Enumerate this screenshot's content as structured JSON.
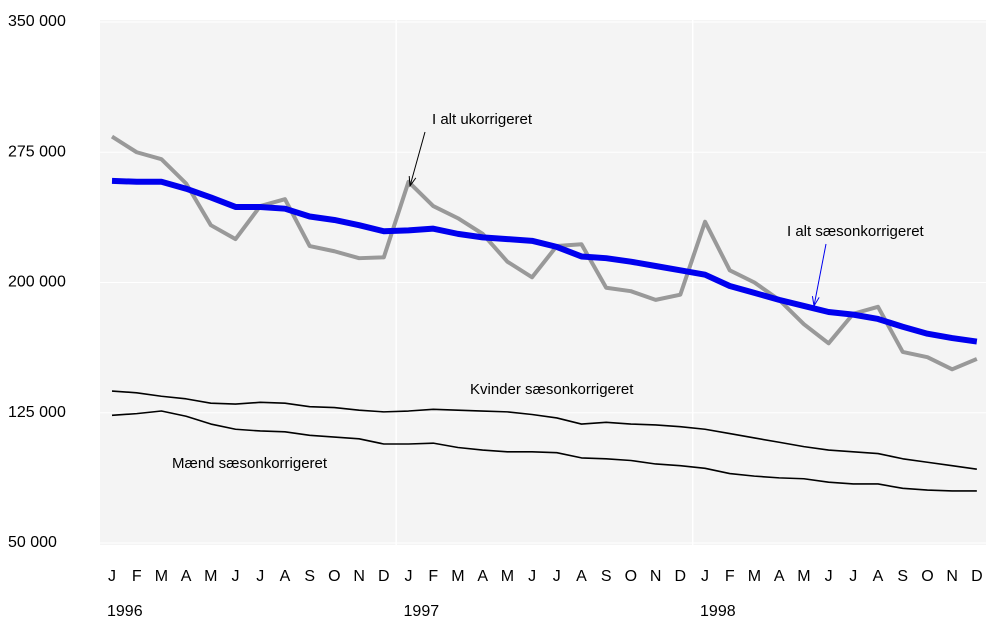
{
  "chart_data": {
    "type": "line",
    "categories": [
      "J",
      "F",
      "M",
      "A",
      "M",
      "J",
      "J",
      "A",
      "S",
      "O",
      "N",
      "D",
      "J",
      "F",
      "M",
      "A",
      "M",
      "J",
      "J",
      "A",
      "S",
      "O",
      "N",
      "D",
      "J",
      "F",
      "M",
      "A",
      "M",
      "J",
      "J",
      "A",
      "S",
      "O",
      "N",
      "D"
    ],
    "years": [
      "1996",
      "1997",
      "1998"
    ],
    "ylim": [
      50000,
      350000
    ],
    "yticks": [
      {
        "value": 50000,
        "label": "50 000"
      },
      {
        "value": 125000,
        "label": "125 000"
      },
      {
        "value": 200000,
        "label": "200 000"
      },
      {
        "value": 275000,
        "label": "275 000"
      },
      {
        "value": 350000,
        "label": "350 000"
      }
    ],
    "grid": true,
    "series": [
      {
        "name": "I alt ukorrigeret",
        "color": "#999999",
        "width": 4,
        "values": [
          284000,
          275000,
          271000,
          257000,
          233000,
          225000,
          244000,
          248000,
          221000,
          218000,
          214000,
          214500,
          258000,
          244000,
          237000,
          228000,
          212000,
          203000,
          221000,
          222000,
          197000,
          195000,
          190000,
          193000,
          235000,
          207000,
          200000,
          190000,
          176000,
          165000,
          182000,
          186000,
          160000,
          157000,
          150000,
          156000
        ]
      },
      {
        "name": "I alt sæsonkorrigeret",
        "color": "#0000ee",
        "width": 6,
        "values": [
          258500,
          258000,
          258000,
          254000,
          249000,
          243500,
          243500,
          242500,
          238000,
          236000,
          233000,
          229500,
          230000,
          231000,
          228000,
          226000,
          225000,
          224000,
          220500,
          215000,
          214000,
          212000,
          209500,
          207000,
          204500,
          198000,
          194000,
          190000,
          186500,
          183000,
          181500,
          179000,
          174500,
          170500,
          168000,
          166000
        ]
      },
      {
        "name": "Kvinder sæsonkorrigeret",
        "color": "#000000",
        "width": 1.6,
        "values": [
          137500,
          136500,
          134500,
          133000,
          130500,
          130000,
          131000,
          130500,
          128500,
          128000,
          126500,
          125500,
          126000,
          127000,
          126500,
          126000,
          125500,
          124000,
          122000,
          118500,
          119500,
          118500,
          118000,
          117000,
          115500,
          113000,
          110500,
          108000,
          105500,
          103500,
          102500,
          101500,
          98500,
          96500,
          94500,
          92500
        ]
      },
      {
        "name": "Mænd sæsonkorrigeret",
        "color": "#000000",
        "width": 1.6,
        "values": [
          123500,
          124500,
          126000,
          123000,
          118500,
          115500,
          114500,
          114000,
          112000,
          111000,
          110000,
          107000,
          107000,
          107500,
          105000,
          103500,
          102500,
          102500,
          102000,
          99000,
          98500,
          97500,
          95500,
          94500,
          93000,
          90000,
          88500,
          87500,
          87000,
          85000,
          84000,
          84000,
          81500,
          80500,
          80000,
          80000
        ]
      }
    ]
  }
}
